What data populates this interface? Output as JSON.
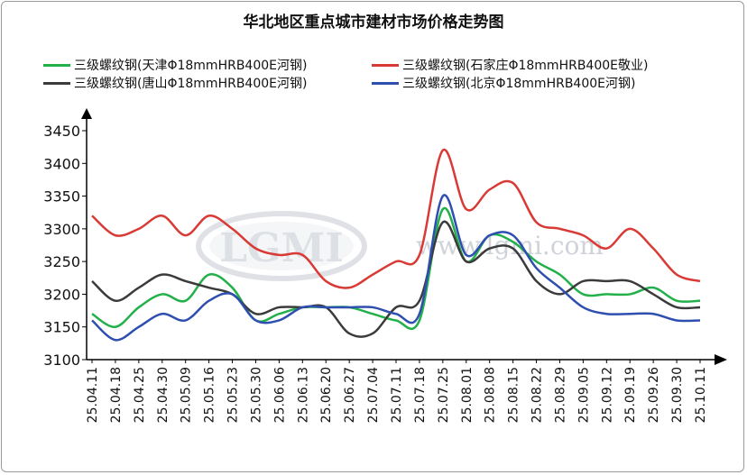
{
  "chart_data": {
    "type": "line",
    "title": "华北地区重点城市建材市场价格走势图",
    "xlabel": "",
    "ylabel": "",
    "ylim": [
      3100,
      3450
    ],
    "yticks": [
      3100,
      3150,
      3200,
      3250,
      3300,
      3350,
      3400,
      3450
    ],
    "grid": false,
    "legend": "top",
    "watermark": {
      "logo": "LGMI",
      "site": "www.lgmi.com"
    },
    "categories": [
      "25.04.11",
      "25.04.18",
      "25.04.25",
      "25.04.30",
      "25.05.09",
      "25.05.16",
      "25.05.23",
      "25.05.30",
      "25.06.06",
      "25.06.13",
      "25.06.20",
      "25.06.27",
      "25.07.04",
      "25.07.11",
      "25.07.18",
      "25.07.25",
      "25.08.01",
      "25.08.08",
      "25.08.15",
      "25.08.22",
      "25.08.29",
      "25.09.05",
      "25.09.12",
      "25.09.19",
      "25.09.26",
      "25.09.30",
      "25.10.11"
    ],
    "series": [
      {
        "name": "三级螺纹钢(天津Φ18mmHRB400E河钢)",
        "color": "#22b04b",
        "values": [
          3170,
          3150,
          3180,
          3200,
          3190,
          3230,
          3210,
          3160,
          3170,
          3180,
          3180,
          3180,
          3170,
          3160,
          3160,
          3330,
          3250,
          3290,
          3280,
          3250,
          3230,
          3200,
          3200,
          3200,
          3210,
          3190,
          3190
        ]
      },
      {
        "name": "三级螺纹钢(石家庄Φ18mmHRB400E敬业)",
        "color": "#d93a35",
        "values": [
          3320,
          3290,
          3300,
          3320,
          3290,
          3320,
          3300,
          3270,
          3260,
          3260,
          3220,
          3210,
          3230,
          3250,
          3260,
          3420,
          3330,
          3360,
          3370,
          3310,
          3300,
          3290,
          3270,
          3300,
          3270,
          3230,
          3220
        ]
      },
      {
        "name": "三级螺纹钢(唐山Φ18mmHRB400E河钢)",
        "color": "#3b3b3b",
        "values": [
          3220,
          3190,
          3210,
          3230,
          3220,
          3210,
          3200,
          3170,
          3180,
          3180,
          3180,
          3140,
          3140,
          3180,
          3190,
          3310,
          3250,
          3270,
          3270,
          3220,
          3200,
          3220,
          3220,
          3220,
          3200,
          3180,
          3180
        ]
      },
      {
        "name": "三级螺纹钢(北京Φ18mmHRB400E河钢)",
        "color": "#2f4fb0",
        "values": [
          3160,
          3130,
          3150,
          3170,
          3160,
          3190,
          3200,
          3160,
          3160,
          3180,
          3180,
          3180,
          3180,
          3170,
          3170,
          3350,
          3260,
          3290,
          3290,
          3240,
          3210,
          3180,
          3170,
          3170,
          3170,
          3160,
          3160
        ]
      }
    ]
  }
}
